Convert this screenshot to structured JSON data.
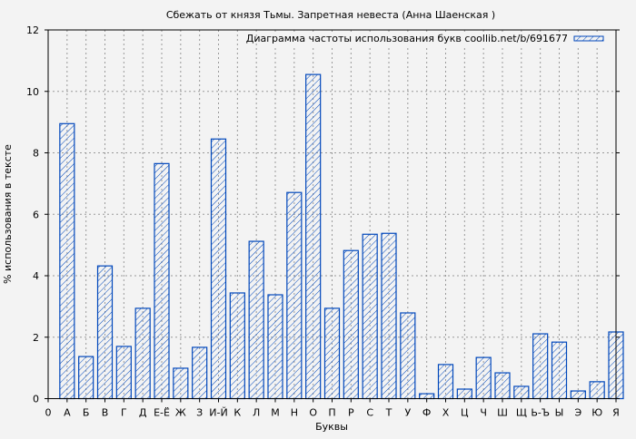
{
  "chart_data": {
    "type": "bar",
    "title": "Сбежать от князя Тьмы. Запретная невеста (Анна Шаенская )",
    "xlabel": "Буквы",
    "ylabel": "% использования в тексте",
    "legend": {
      "label": "Диаграмма частоты использования букв coollib.net/b/691677",
      "placement": "top-right"
    },
    "x_tick_zero": "0",
    "categories": [
      "А",
      "Б",
      "В",
      "Г",
      "Д",
      "Е-Ё",
      "Ж",
      "З",
      "И-Й",
      "К",
      "Л",
      "М",
      "Н",
      "О",
      "П",
      "Р",
      "С",
      "Т",
      "У",
      "Ф",
      "Х",
      "Ц",
      "Ч",
      "Ш",
      "Щ",
      "Ь-Ъ",
      "Ы",
      "Э",
      "Ю",
      "Я"
    ],
    "values": [
      8.95,
      1.37,
      4.32,
      1.7,
      2.94,
      7.65,
      0.99,
      1.67,
      8.45,
      3.44,
      5.12,
      3.38,
      6.71,
      10.55,
      2.94,
      4.82,
      5.35,
      5.38,
      2.79,
      0.16,
      1.11,
      0.31,
      1.34,
      0.84,
      0.4,
      2.11,
      1.84,
      0.25,
      0.55,
      2.17
    ],
    "xlim": [
      0,
      30
    ],
    "ylim": [
      0,
      12
    ],
    "yticks": [
      0,
      2,
      4,
      6,
      8,
      10,
      12
    ],
    "grid": true,
    "colors": {
      "bar_edge": "#0047bb",
      "background": "#f3f3f3",
      "grid": "#999999"
    }
  }
}
